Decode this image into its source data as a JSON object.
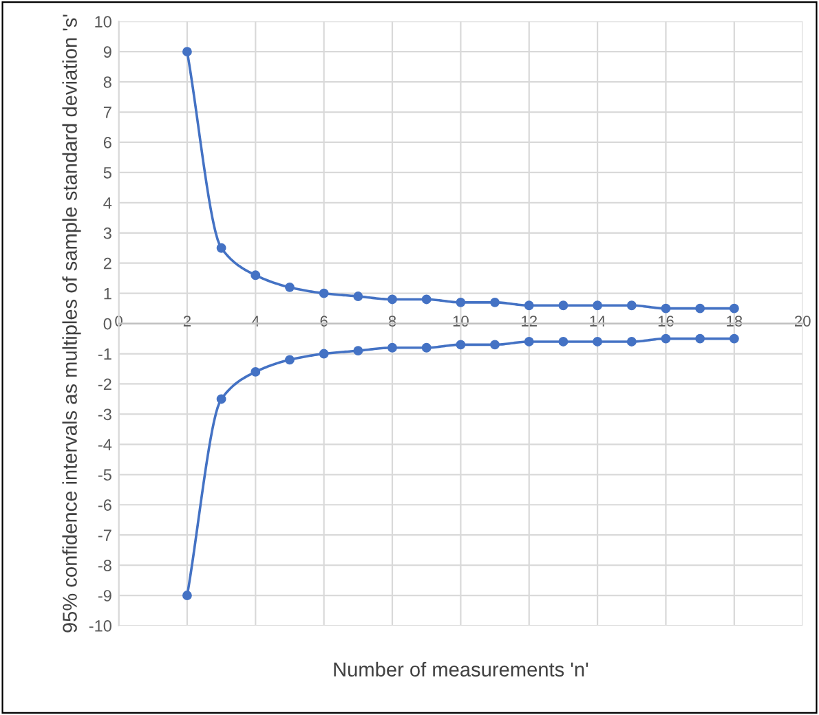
{
  "chart_data": {
    "type": "line",
    "xlabel": "Number of measurements 'n'",
    "ylabel": "95% confidence intervals as multiples of sample standard deviation 's'",
    "x": [
      2,
      3,
      4,
      5,
      6,
      7,
      8,
      9,
      10,
      11,
      12,
      13,
      14,
      15,
      16,
      17,
      18
    ],
    "series": [
      {
        "color": "#4472c4",
        "values": [
          9.0,
          2.5,
          1.6,
          1.2,
          1.0,
          0.9,
          0.8,
          0.8,
          0.7,
          0.7,
          0.6,
          0.6,
          0.6,
          0.6,
          0.5,
          0.5,
          0.5
        ]
      },
      {
        "color": "#4472c4",
        "values": [
          -9.0,
          -2.5,
          -1.6,
          -1.2,
          -1.0,
          -0.9,
          -0.8,
          -0.8,
          -0.7,
          -0.7,
          -0.6,
          -0.6,
          -0.6,
          -0.6,
          -0.5,
          -0.5,
          -0.5
        ]
      }
    ],
    "xlim": [
      0,
      20
    ],
    "xticks": [
      0,
      2,
      4,
      6,
      8,
      10,
      12,
      14,
      16,
      18,
      20
    ],
    "ylim": [
      -10,
      10
    ],
    "yticks": [
      -10,
      -9,
      -8,
      -7,
      -6,
      -5,
      -4,
      -3,
      -2,
      -1,
      0,
      1,
      2,
      3,
      4,
      5,
      6,
      7,
      8,
      9,
      10
    ],
    "grid": true,
    "marker": "circle",
    "line_style": "solid"
  }
}
